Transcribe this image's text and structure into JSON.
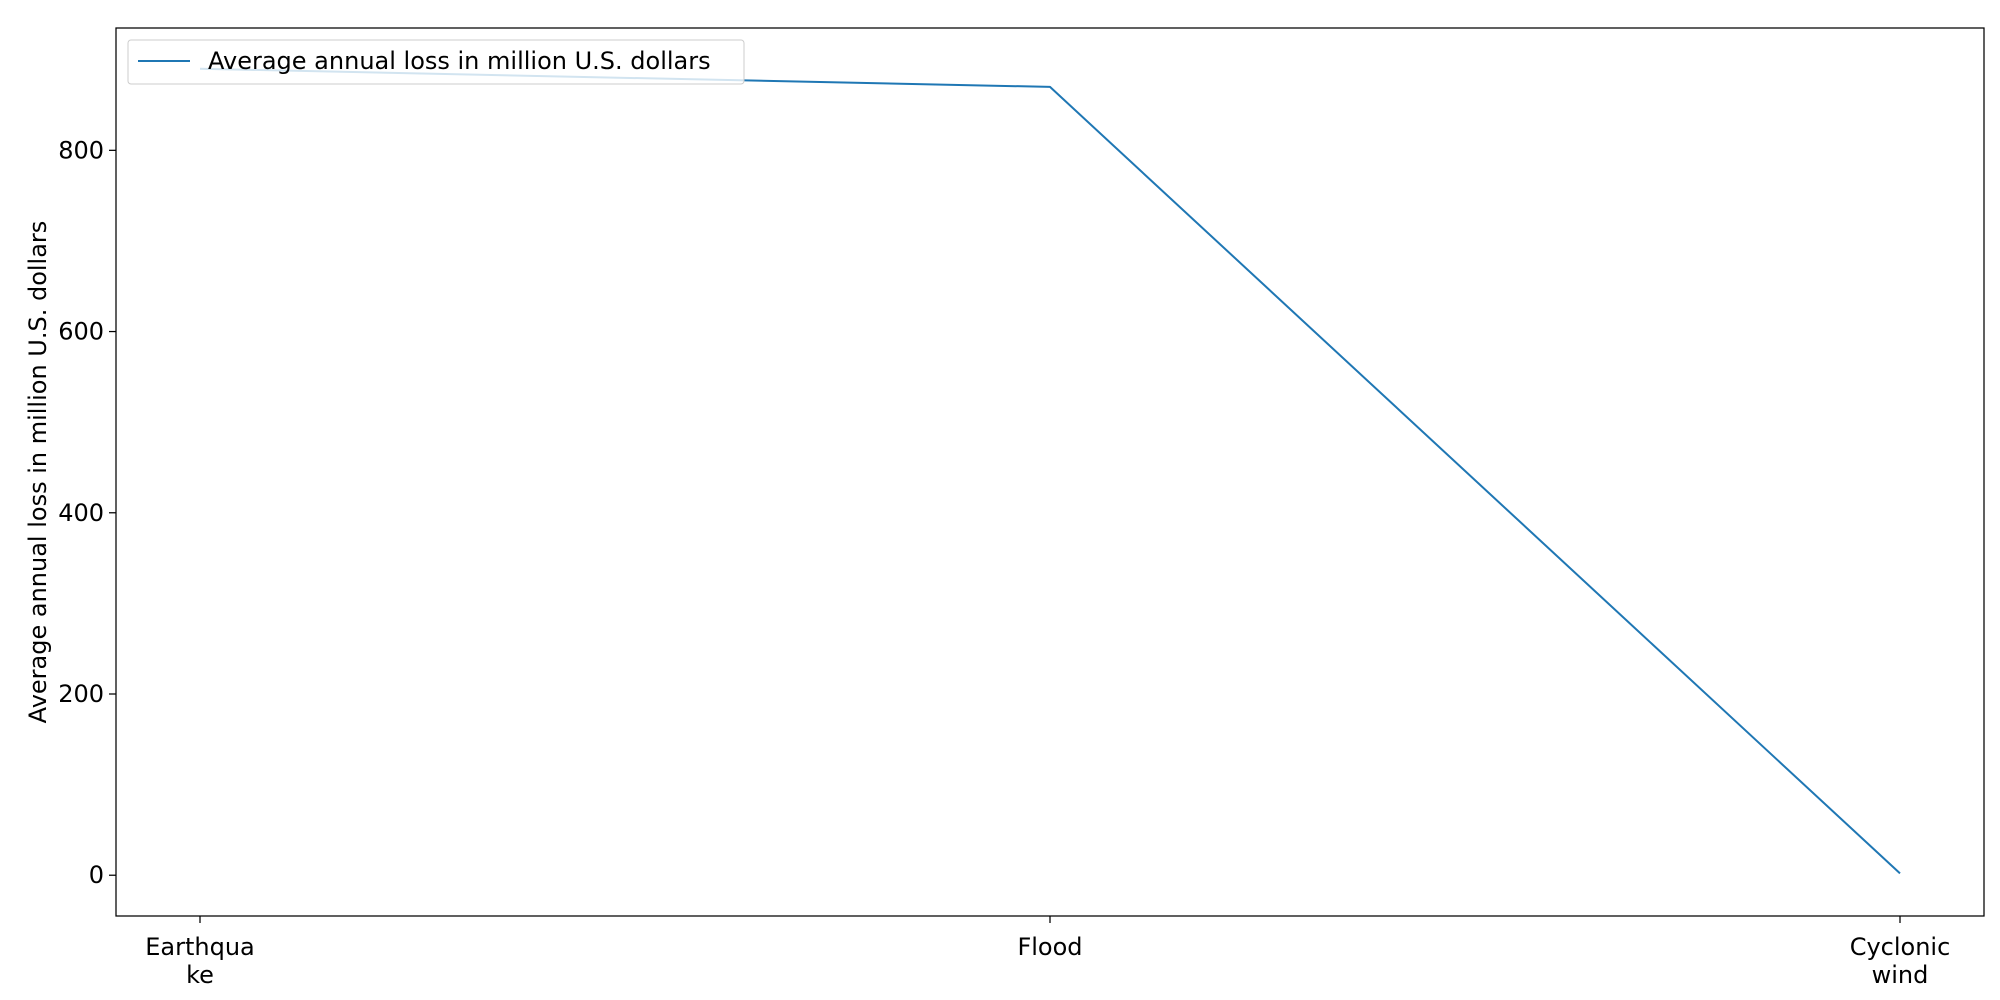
{
  "chart_data": {
    "type": "line",
    "categories": [
      "Earthquake",
      "Flood",
      "Cyclonic wind"
    ],
    "category_display": [
      [
        "Earthqua",
        "ke"
      ],
      [
        "Flood"
      ],
      [
        "Cyclonic",
        "wind"
      ]
    ],
    "series": [
      {
        "name": "Average annual loss in million U.S. dollars",
        "values": [
          890,
          870,
          2
        ],
        "color": "#1f77b4"
      }
    ],
    "title": "",
    "xlabel": "",
    "ylabel": "Average annual loss in million U.S. dollars",
    "ylim": [
      -45,
      935
    ],
    "yticks": [
      0,
      200,
      400,
      600,
      800
    ],
    "grid": false,
    "legend": "upper-left"
  }
}
